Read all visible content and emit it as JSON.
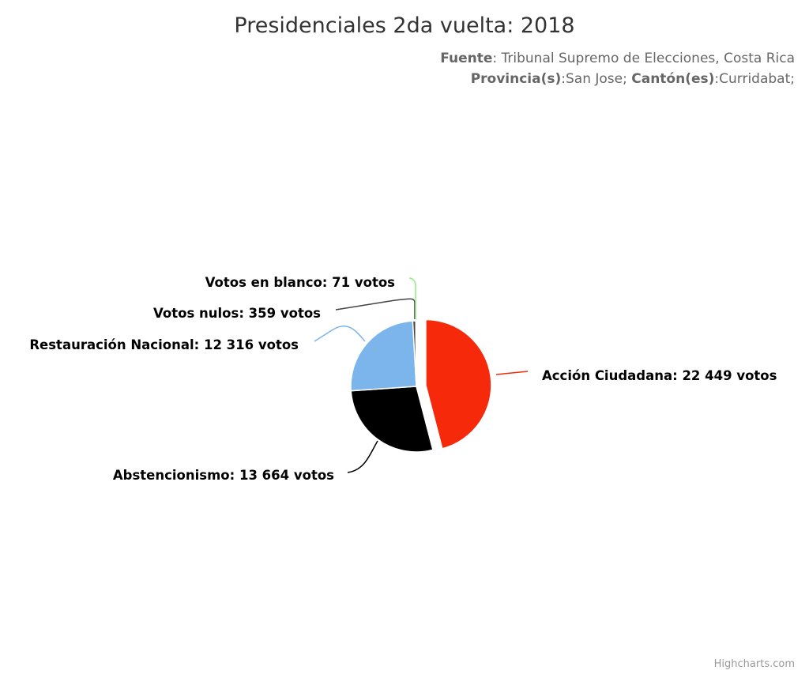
{
  "chart_data": {
    "type": "pie",
    "title": "Presidenciales 2da vuelta: 2018",
    "subtitle": {
      "source_label": "Fuente",
      "source_value": ": Tribunal Supremo de Elecciones, Costa Rica",
      "province_label": "Provincia(s)",
      "province_value": ":San Jose; ",
      "canton_label": "Cantón(es)",
      "canton_value": ":Curridabat;"
    },
    "unit_suffix": "votos",
    "slices": [
      {
        "name": "Acción Ciudadana",
        "value": 22449,
        "label": "Acción Ciudadana: 22 449 votos",
        "color": "#f62a0a",
        "sliced": true
      },
      {
        "name": "Abstencionismo",
        "value": 13664,
        "label": "Abstencionismo: 13 664 votos",
        "color": "#000000"
      },
      {
        "name": "Restauración Nacional",
        "value": 12316,
        "label": "Restauración Nacional: 12 316 votos",
        "color": "#7cb5ec"
      },
      {
        "name": "Votos nulos",
        "value": 359,
        "label": "Votos nulos: 359 votos",
        "color": "#434348"
      },
      {
        "name": "Votos en blanco",
        "value": 71,
        "label": "Votos en blanco: 71 votos",
        "color": "#90ed7d"
      }
    ],
    "credits": "Highcharts.com"
  }
}
